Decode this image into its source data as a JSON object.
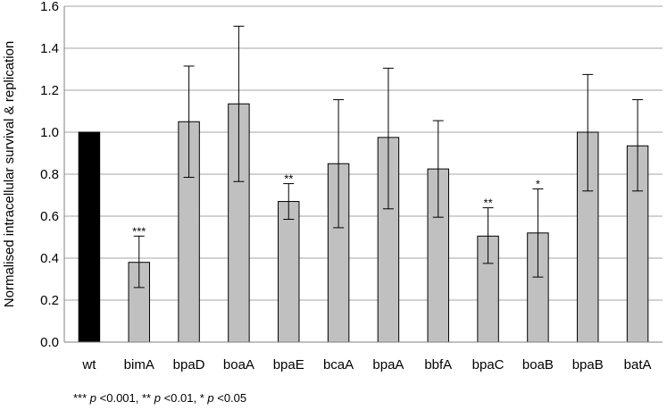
{
  "chart_data": {
    "type": "bar",
    "title": "",
    "xlabel": "",
    "ylabel": "Normalised intracellular survival & replication",
    "ylim": [
      0,
      1.6
    ],
    "yticks": [
      "0.0",
      "0.2",
      "0.4",
      "0.6",
      "0.8",
      "1.0",
      "1.2",
      "1.4",
      "1.6"
    ],
    "grid": true,
    "categories": [
      "wt",
      "bimA",
      "bpaD",
      "boaA",
      "bpaE",
      "bcaA",
      "bpaA",
      "bbfA",
      "bpaC",
      "boaB",
      "bpaB",
      "batA"
    ],
    "values": [
      1.0,
      0.38,
      1.05,
      1.135,
      0.67,
      0.85,
      0.975,
      0.825,
      0.505,
      0.52,
      1.0,
      0.935
    ],
    "error_high": [
      1.0,
      0.505,
      1.315,
      1.505,
      0.755,
      1.155,
      1.305,
      1.055,
      0.64,
      0.73,
      1.275,
      1.155
    ],
    "error_low": [
      1.0,
      0.26,
      0.785,
      0.765,
      0.585,
      0.545,
      0.635,
      0.595,
      0.375,
      0.31,
      0.72,
      0.72
    ],
    "significance": [
      "",
      "***",
      "",
      "",
      "**",
      "",
      "",
      "",
      "**",
      "*",
      "",
      ""
    ],
    "colors": {
      "control": "#000000",
      "mutant": "#c0c0c0",
      "grid": "#a6a6a6",
      "bar_outline": "#000000"
    }
  },
  "footnote": {
    "p1_stars": "*** ",
    "p1_sym": "p",
    "p1_val": " <0.001, ",
    "p2_stars": "** ",
    "p2_sym": "p",
    "p2_val": " <0.01, ",
    "p3_stars": "* ",
    "p3_sym": "p",
    "p3_val": " <0.05"
  }
}
